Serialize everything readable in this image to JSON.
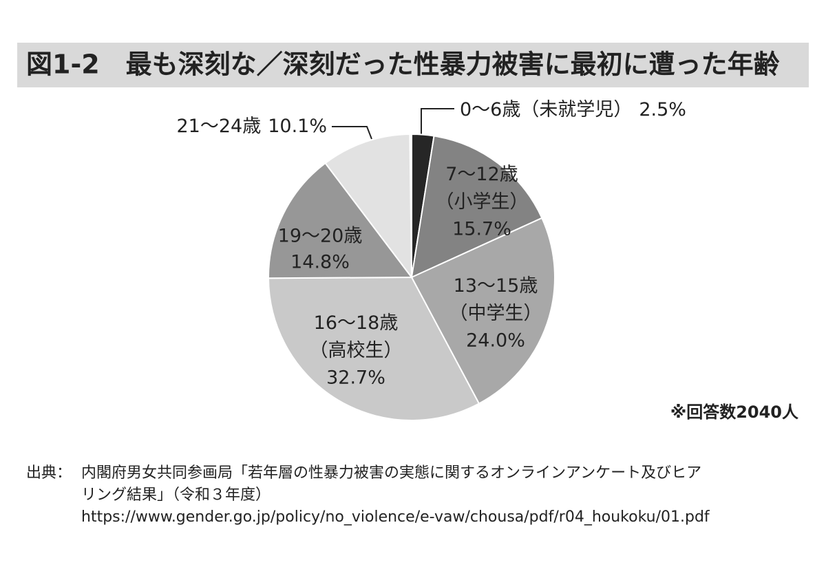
{
  "chart_data": {
    "type": "pie",
    "title": "図1-2　最も深刻な／深刻だった性暴力被害に最初に遭った年齢",
    "categories": [
      "0～6歳（未就学児）",
      "7～12歳\n（小学生）",
      "13～15歳\n（中学生）",
      "16～18歳\n（高校生）",
      "19～20歳",
      "21～24歳"
    ],
    "values": [
      2.5,
      15.7,
      24.0,
      32.7,
      14.8,
      10.1
    ],
    "value_labels": [
      "2.5%",
      "15.7%",
      "24.0%",
      "32.7%",
      "14.8%",
      "10.1%"
    ],
    "colors": [
      "#262626",
      "#838383",
      "#a8a8a8",
      "#c9c9c9",
      "#979797",
      "#e2e2e2"
    ],
    "note": "※回答数2040人",
    "source": {
      "label": "出典：",
      "lines": [
        "内閣府男女共同参画局「若年層の性暴力被害の実態に関するオンラインアンケート及びヒア",
        "リング結果」（令和３年度）",
        "https://www.gender.go.jp/policy/no_violence/e-vaw/chousa/pdf/r04_houkoku/01.pdf"
      ]
    }
  }
}
